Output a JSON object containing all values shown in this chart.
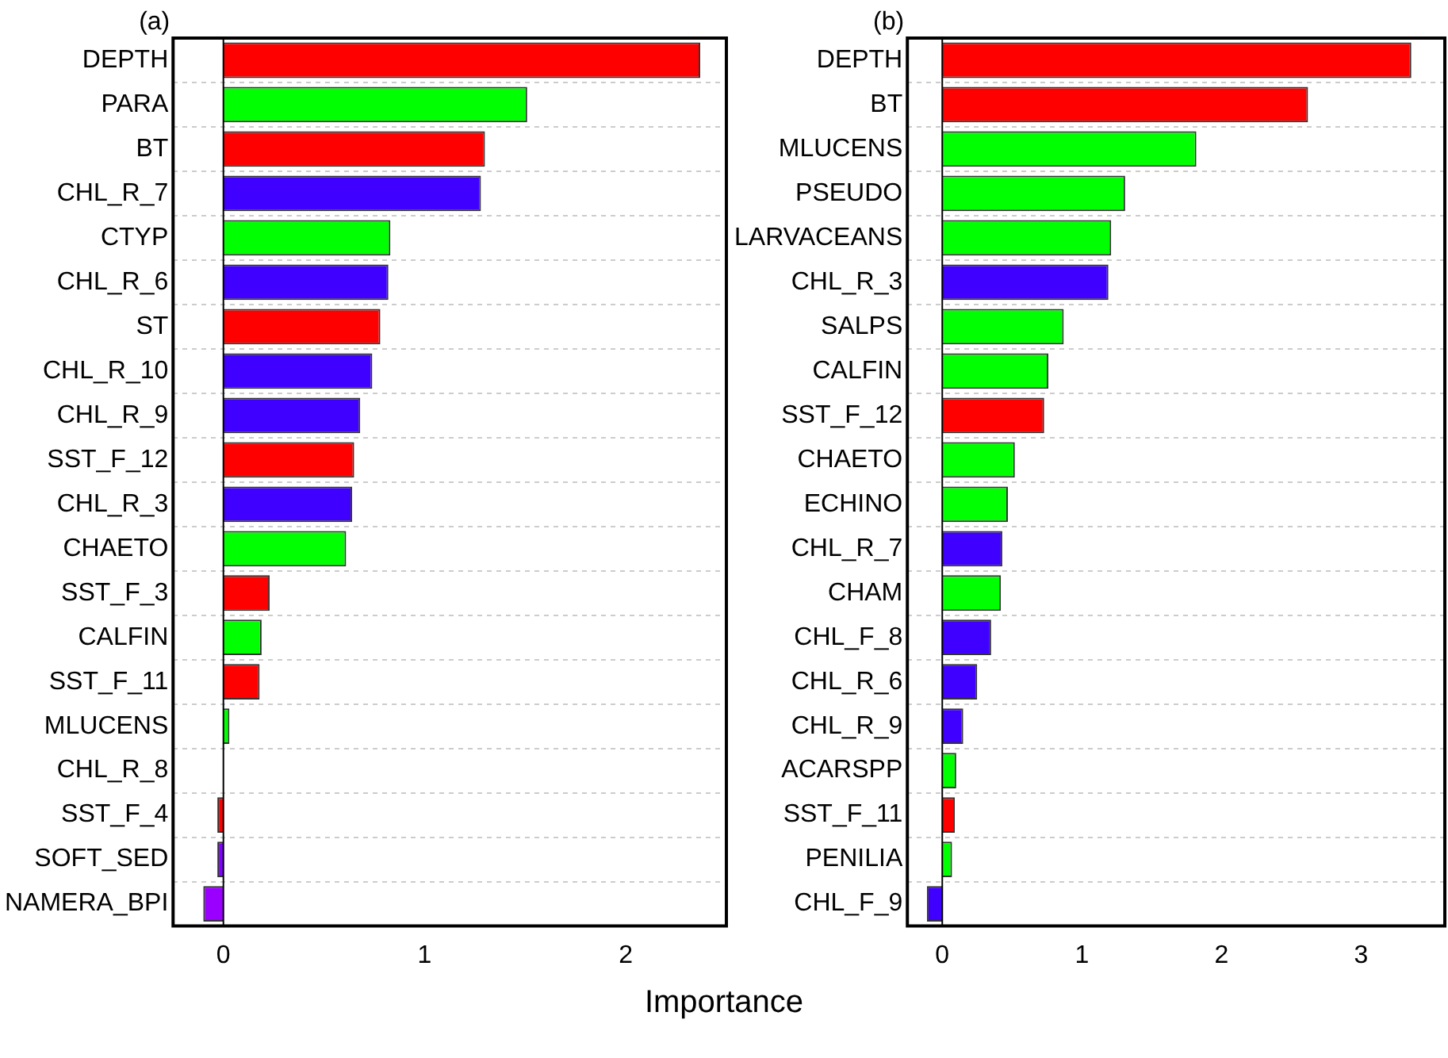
{
  "chart_data": [
    {
      "type": "bar",
      "title": "(a)",
      "xlabel": "Importance",
      "orientation": "horizontal",
      "grid": "y",
      "categories": [
        "DEPTH",
        "PARA",
        "BT",
        "CHL_R_7",
        "CTYP",
        "CHL_R_6",
        "ST",
        "CHL_R_10",
        "CHL_R_9",
        "SST_F_12",
        "CHL_R_3",
        "CHAETO",
        "SST_F_3",
        "CALFIN",
        "SST_F_11",
        "MLUCENS",
        "CHL_R_8",
        "SST_F_4",
        "SOFT_SED",
        "NAMERA_BPI"
      ],
      "values": [
        2.37,
        1.51,
        1.3,
        1.28,
        0.83,
        0.82,
        0.78,
        0.74,
        0.68,
        0.65,
        0.64,
        0.61,
        0.23,
        0.19,
        0.18,
        0.03,
        0,
        -0.03,
        -0.03,
        -0.1
      ],
      "colors": [
        "#ff0000",
        "#00ff00",
        "#ff0000",
        "#3f00ff",
        "#00ff00",
        "#3f00ff",
        "#ff0000",
        "#3f00ff",
        "#3f00ff",
        "#ff0000",
        "#3f00ff",
        "#00ff00",
        "#ff0000",
        "#00ff00",
        "#ff0000",
        "#00ff00",
        "#3f00ff",
        "#ff0000",
        "#7f00ff",
        "#9900ff"
      ],
      "xlim": [
        -0.25,
        2.5
      ],
      "xticks": [
        0,
        1,
        2
      ]
    },
    {
      "type": "bar",
      "title": "(b)",
      "orientation": "horizontal",
      "grid": "y",
      "categories": [
        "DEPTH",
        "BT",
        "MLUCENS",
        "PSEUDO",
        "LARVACEANS",
        "CHL_R_3",
        "SALPS",
        "CALFIN",
        "SST_F_12",
        "CHAETO",
        "ECHINO",
        "CHL_R_7",
        "CHAM",
        "CHL_F_8",
        "CHL_R_6",
        "CHL_R_9",
        "ACARSPP",
        "SST_F_11",
        "PENILIA",
        "CHL_F_9"
      ],
      "values": [
        3.36,
        2.62,
        1.82,
        1.31,
        1.21,
        1.19,
        0.87,
        0.76,
        0.73,
        0.52,
        0.47,
        0.43,
        0.42,
        0.35,
        0.25,
        0.15,
        0.1,
        0.09,
        0.07,
        -0.11
      ],
      "colors": [
        "#ff0000",
        "#ff0000",
        "#00ff00",
        "#00ff00",
        "#00ff00",
        "#3f00ff",
        "#00ff00",
        "#00ff00",
        "#ff0000",
        "#00ff00",
        "#00ff00",
        "#3f00ff",
        "#00ff00",
        "#3f00ff",
        "#3f00ff",
        "#3f00ff",
        "#00ff00",
        "#ff0000",
        "#00ff00",
        "#3f00ff"
      ],
      "xlim": [
        -0.25,
        3.6
      ],
      "xticks": [
        0,
        1,
        2,
        3
      ]
    }
  ]
}
